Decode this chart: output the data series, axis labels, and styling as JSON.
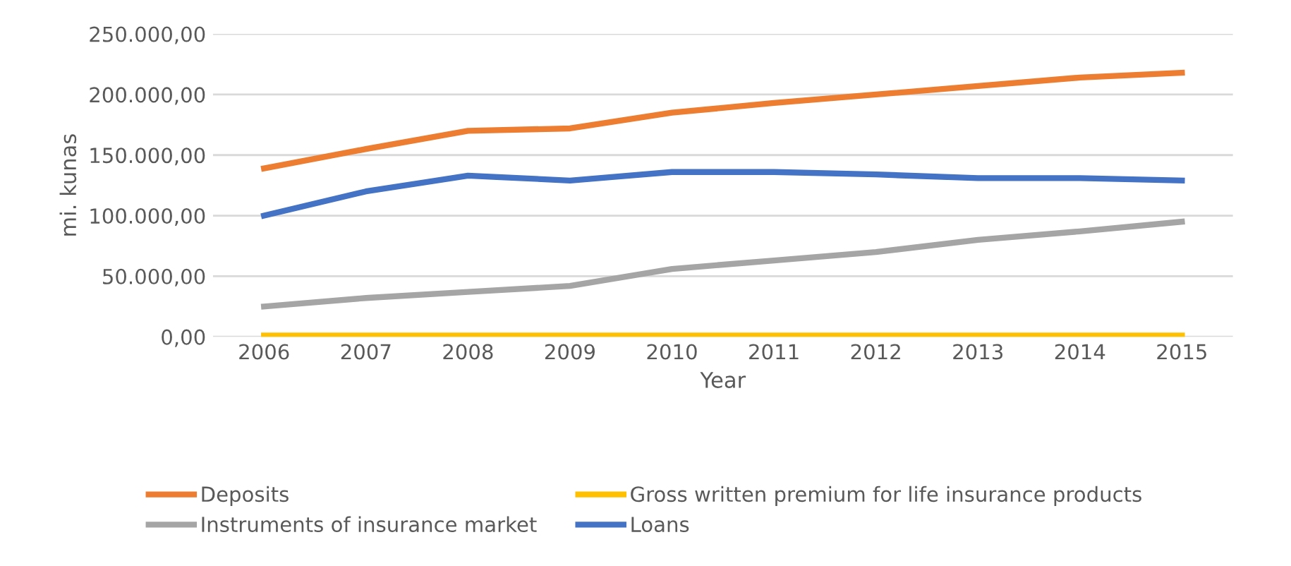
{
  "chart_data": {
    "type": "line",
    "xlabel": "Year",
    "ylabel": "mi. kunas",
    "categories": [
      "2006",
      "2007",
      "2008",
      "2009",
      "2010",
      "2011",
      "2012",
      "2013",
      "2014",
      "2015"
    ],
    "series": [
      {
        "name": "Deposits",
        "color": "#ed7d31",
        "values": [
          139000,
          155000,
          170000,
          172000,
          185000,
          193000,
          200000,
          207000,
          214000,
          218000
        ]
      },
      {
        "name": "Instruments of insurance market",
        "color": "#a5a5a5",
        "values": [
          25000,
          32000,
          37000,
          42000,
          56000,
          63000,
          70000,
          80000,
          87000,
          95000
        ]
      },
      {
        "name": "Gross written premium for life insurance products",
        "color": "#ffc000",
        "values": [
          1000,
          1000,
          1000,
          1000,
          1000,
          1000,
          1000,
          1000,
          1000,
          1000
        ]
      },
      {
        "name": "Loans",
        "color": "#4472c4",
        "values": [
          100000,
          120000,
          133000,
          129000,
          136000,
          136000,
          134000,
          131000,
          131000,
          129000
        ]
      }
    ],
    "ylim": [
      0,
      250000
    ],
    "yticks": [
      {
        "value": 0,
        "label": "0,00"
      },
      {
        "value": 50000,
        "label": "50.000,00"
      },
      {
        "value": 100000,
        "label": "100.000,00"
      },
      {
        "value": 150000,
        "label": "150.000,00"
      },
      {
        "value": 200000,
        "label": "200.000,00"
      },
      {
        "value": 250000,
        "label": "250.000,00"
      }
    ],
    "grid": "y",
    "legend": "bottom",
    "marker": "none",
    "line_style": "solid"
  }
}
